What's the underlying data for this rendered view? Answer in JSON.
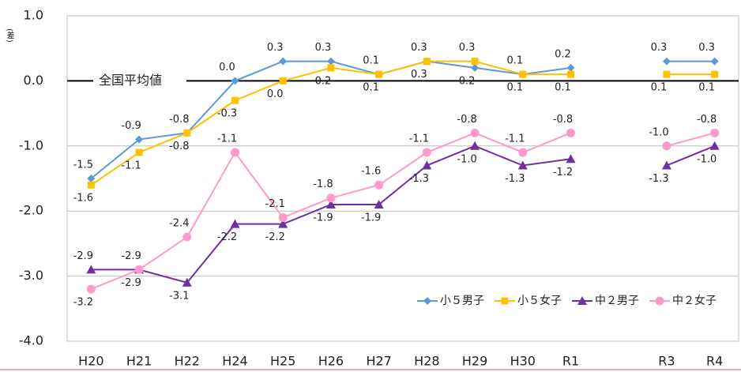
{
  "chart_data": {
    "type": "line",
    "y_axis_label": "(差)",
    "annotation": "全国平均値",
    "categories": [
      "H20",
      "H21",
      "H22",
      "H24",
      "H25",
      "H26",
      "H27",
      "H28",
      "H29",
      "H30",
      "R1",
      null,
      "R3",
      "R4"
    ],
    "ylim": [
      -4,
      1
    ],
    "yticks": [
      {
        "value": -4,
        "label": "-4.0"
      },
      {
        "value": -3,
        "label": "-3.0"
      },
      {
        "value": -2,
        "label": "-2.0"
      },
      {
        "value": -1,
        "label": "-1.0"
      },
      {
        "value": 0,
        "label": "0.0"
      },
      {
        "value": 1,
        "label": "1.0"
      }
    ],
    "grid": true,
    "legend": "bottom-right",
    "series": [
      {
        "name": "小５男子",
        "color": "#5b9bd5",
        "marker": "diamond",
        "values": [
          -1.5,
          -0.9,
          -0.8,
          0.0,
          0.3,
          0.3,
          0.1,
          0.3,
          0.2,
          0.1,
          0.2,
          null,
          0.3,
          0.3
        ],
        "value_labels": [
          "-1.5",
          "-0.9",
          "-0.8",
          "0.0",
          "0.3",
          "0.3",
          "0.1",
          "0.3",
          "0.2",
          "0.1",
          "0.2",
          null,
          "0.3",
          "0.3"
        ]
      },
      {
        "name": "小５女子",
        "color": "#ffc000",
        "marker": "square",
        "values": [
          -1.6,
          -1.1,
          -0.8,
          -0.3,
          0.0,
          0.2,
          0.1,
          0.3,
          0.3,
          0.1,
          0.1,
          null,
          0.1,
          0.1
        ],
        "value_labels": [
          "-1.6",
          "-1.1",
          "-0.8",
          "-0.3",
          "0.0",
          "0.2",
          "0.1",
          "0.3",
          "0.3",
          "0.1",
          "0.1",
          null,
          "0.1",
          "0.1"
        ]
      },
      {
        "name": "中２男子",
        "color": "#7030a0",
        "marker": "triangle",
        "values": [
          -2.9,
          -2.9,
          -3.1,
          -2.2,
          -2.2,
          -1.9,
          -1.9,
          -1.3,
          -1.0,
          -1.3,
          -1.2,
          null,
          -1.3,
          -1.0
        ],
        "value_labels": [
          "-2.9",
          "-2.9",
          "-3.1",
          "-2.2",
          "-2.2",
          "-1.9",
          "-1.9",
          "-1.3",
          "-1.0",
          "-1.3",
          "-1.2",
          null,
          "-1.3",
          "-1.0"
        ]
      },
      {
        "name": "中２女子",
        "color": "#ff99cc",
        "marker": "circle",
        "values": [
          -3.2,
          -2.9,
          -2.4,
          -1.1,
          -2.1,
          -1.8,
          -1.6,
          -1.1,
          -0.8,
          -1.1,
          -0.8,
          null,
          -1.0,
          -0.8
        ],
        "value_labels": [
          "-3.2",
          "-2.9",
          "-2.4",
          "-1.1",
          "-2.1",
          "-1.8",
          "-1.6",
          "-1.1",
          "-0.8",
          "-1.1",
          "-0.8",
          null,
          "-1.0",
          "-0.8"
        ]
      }
    ]
  }
}
